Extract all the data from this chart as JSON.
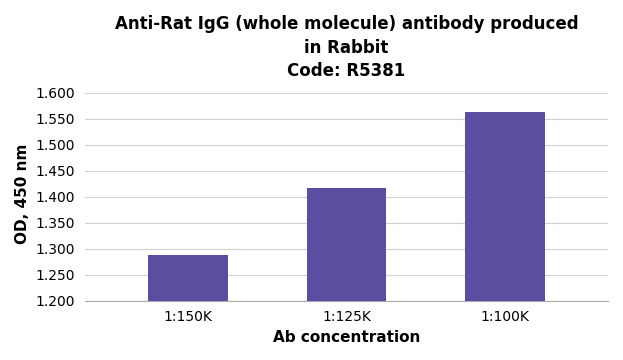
{
  "title_line1": "Anti-Rat IgG (whole molecule) antibody produced",
  "title_line2": "in Rabbit",
  "title_line3": "Code: R5381",
  "categories": [
    "1:150K",
    "1:125K",
    "1:100K"
  ],
  "values": [
    1.287,
    1.417,
    1.562
  ],
  "bar_color": "#5b4ea0",
  "xlabel": "Ab concentration",
  "ylabel": "OD, 450 nm",
  "ylim_min": 1.2,
  "ylim_max": 1.61,
  "yticks": [
    1.2,
    1.25,
    1.3,
    1.35,
    1.4,
    1.45,
    1.5,
    1.55,
    1.6
  ],
  "background_color": "#ffffff",
  "grid_color": "#d0d0d0",
  "title_fontsize": 12,
  "axis_label_fontsize": 11,
  "tick_fontsize": 10
}
